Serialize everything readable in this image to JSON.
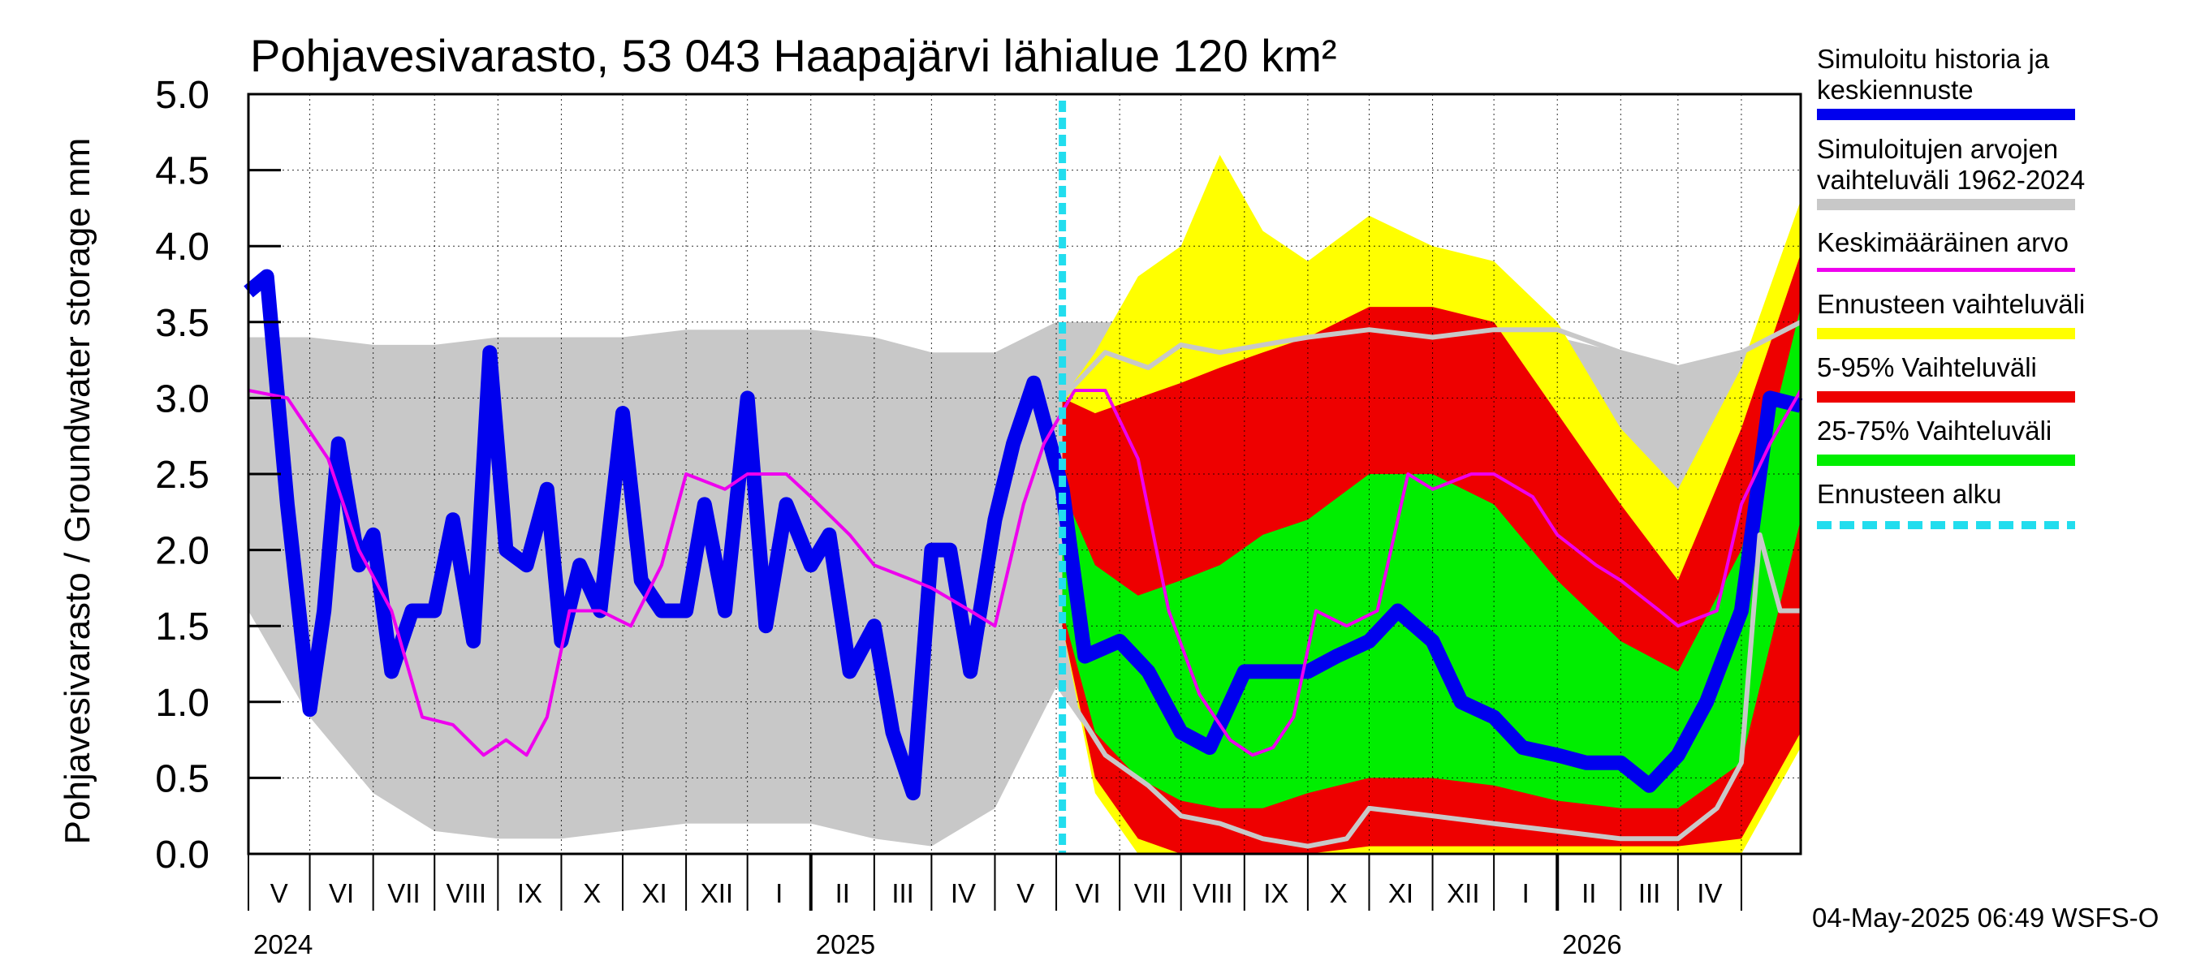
{
  "title": "Pohjavesivarasto, 53 043 Haapajärvi lähialue 120 km²",
  "timestamp": "04-May-2025 06:49 WSFS-O",
  "legend": [
    {
      "label": "Simuloitu historia ja\nkeskiennuste",
      "color": "#0000ee",
      "style": "thick"
    },
    {
      "label": "Simuloitujen arvojen\nvaihteluväli 1962-2024",
      "color": "#c8c8c8",
      "style": "thick"
    },
    {
      "label": "Keskimääräinen arvo",
      "color": "#ee00ee",
      "style": "thin"
    },
    {
      "label": "Ennusteen vaihteluväli",
      "color": "#ffff00",
      "style": "thick"
    },
    {
      "label": "5-95% Vaihteluväli",
      "color": "#ee0000",
      "style": "thick"
    },
    {
      "label": "25-75% Vaihteluväli",
      "color": "#00ee00",
      "style": "thick"
    },
    {
      "label": "Ennusteen alku",
      "color": "#22ddee",
      "style": "dashed"
    }
  ],
  "chart_data": {
    "type": "area",
    "title": "Pohjavesivarasto, 53 043 Haapajärvi lähialue 120 km²",
    "ylabel": "Pohjavesivarasto / Groundwater storage   mm",
    "xlabel": "",
    "ylim": [
      0,
      5
    ],
    "xlim": [
      "2024-04-01",
      "2026-04-30"
    ],
    "yticks": [
      "0.0",
      "0.5",
      "1.0",
      "1.5",
      "2.0",
      "2.5",
      "3.0",
      "3.5",
      "4.0",
      "4.5",
      "5.0"
    ],
    "month_labels": [
      "V",
      "VI",
      "VII",
      "VIII",
      "IX",
      "X",
      "XI",
      "XII",
      "I",
      "II",
      "III",
      "IV",
      "V",
      "VI",
      "VII",
      "VIII",
      "IX",
      "X",
      "XI",
      "XII",
      "I",
      "II",
      "III",
      "IV"
    ],
    "year_labels": [
      "2024",
      "2025",
      "2026"
    ],
    "grid": true,
    "forecast_start": "2025-05-04",
    "series": [
      {
        "name": "Simuloitujen arvojen vaihteluväli 1962-2024",
        "kind": "band",
        "x": [
          "2024-04-01",
          "2024-05-01",
          "2024-06-01",
          "2024-07-01",
          "2024-08-01",
          "2024-09-01",
          "2024-10-01",
          "2024-11-01",
          "2024-12-01",
          "2025-01-01",
          "2025-02-01",
          "2025-03-01",
          "2025-04-01",
          "2025-05-01",
          "2025-06-01",
          "2025-07-01",
          "2025-08-01",
          "2025-09-01",
          "2025-10-01",
          "2025-11-01",
          "2025-12-01",
          "2026-01-01",
          "2026-02-01",
          "2026-03-01",
          "2026-04-01",
          "2026-04-30"
        ],
        "low": [
          1.6,
          0.9,
          0.4,
          0.15,
          0.1,
          0.1,
          0.15,
          0.2,
          0.2,
          0.2,
          0.1,
          0.05,
          0.3,
          1.1,
          0.5,
          0.3,
          0.15,
          0.1,
          0.1,
          0.1,
          0.1,
          0.1,
          0.05,
          0.05,
          0.4,
          1.6
        ],
        "high": [
          3.4,
          3.4,
          3.35,
          3.35,
          3.4,
          3.4,
          3.4,
          3.45,
          3.45,
          3.45,
          3.4,
          3.3,
          3.3,
          3.5,
          3.5,
          3.45,
          3.4,
          3.45,
          3.45,
          3.5,
          3.5,
          3.4,
          3.3,
          3.2,
          3.3,
          3.5
        ]
      },
      {
        "name": "Ennusteen vaihteluväli",
        "kind": "band",
        "x": [
          "2025-05-04",
          "2025-05-20",
          "2025-06-10",
          "2025-07-01",
          "2025-07-20",
          "2025-08-10",
          "2025-09-01",
          "2025-10-01",
          "2025-11-01",
          "2025-12-01",
          "2026-01-01",
          "2026-02-01",
          "2026-03-01",
          "2026-04-01",
          "2026-04-30"
        ],
        "low": [
          1.5,
          0.4,
          0.0,
          0.0,
          0.0,
          0.0,
          0.0,
          0.0,
          0.0,
          0.0,
          0.0,
          0.0,
          0.0,
          0.0,
          0.7
        ],
        "high": [
          3.0,
          3.3,
          3.8,
          4.0,
          4.6,
          4.1,
          3.9,
          4.2,
          4.0,
          3.9,
          3.5,
          2.8,
          2.4,
          3.2,
          4.3
        ]
      },
      {
        "name": "5-95% Vaihteluväli",
        "kind": "band",
        "x": [
          "2025-05-04",
          "2025-05-20",
          "2025-06-10",
          "2025-07-01",
          "2025-07-20",
          "2025-08-10",
          "2025-09-01",
          "2025-10-01",
          "2025-11-01",
          "2025-12-01",
          "2026-01-01",
          "2026-02-01",
          "2026-03-01",
          "2026-04-01",
          "2026-04-30"
        ],
        "low": [
          1.5,
          0.5,
          0.1,
          0.0,
          0.0,
          0.0,
          0.0,
          0.05,
          0.05,
          0.05,
          0.05,
          0.05,
          0.05,
          0.1,
          0.8
        ],
        "high": [
          3.0,
          2.9,
          3.0,
          3.1,
          3.2,
          3.3,
          3.4,
          3.6,
          3.6,
          3.5,
          2.9,
          2.3,
          1.8,
          2.8,
          3.95
        ]
      },
      {
        "name": "25-75% Vaihteluväli",
        "kind": "band",
        "x": [
          "2025-05-04",
          "2025-05-20",
          "2025-06-10",
          "2025-07-01",
          "2025-07-20",
          "2025-08-10",
          "2025-09-01",
          "2025-10-01",
          "2025-11-01",
          "2025-12-01",
          "2026-01-01",
          "2026-02-01",
          "2026-03-01",
          "2026-04-01",
          "2026-04-30"
        ],
        "low": [
          1.6,
          0.8,
          0.5,
          0.35,
          0.3,
          0.3,
          0.4,
          0.5,
          0.5,
          0.45,
          0.35,
          0.3,
          0.3,
          0.6,
          2.2
        ],
        "high": [
          2.4,
          1.9,
          1.7,
          1.8,
          1.9,
          2.1,
          2.2,
          2.5,
          2.5,
          2.3,
          1.8,
          1.4,
          1.2,
          2.0,
          3.6
        ]
      },
      {
        "name": "Simuloitu historia ja keskiennuste",
        "kind": "line",
        "stroke": 18,
        "x": [
          "2024-04-01",
          "2024-04-10",
          "2024-04-20",
          "2024-05-01",
          "2024-05-08",
          "2024-05-15",
          "2024-05-25",
          "2024-06-01",
          "2024-06-10",
          "2024-06-20",
          "2024-07-01",
          "2024-07-10",
          "2024-07-20",
          "2024-07-28",
          "2024-08-05",
          "2024-08-15",
          "2024-08-25",
          "2024-09-01",
          "2024-09-10",
          "2024-09-20",
          "2024-10-01",
          "2024-10-10",
          "2024-10-20",
          "2024-11-01",
          "2024-11-10",
          "2024-11-20",
          "2024-12-01",
          "2024-12-10",
          "2024-12-20",
          "2025-01-01",
          "2025-01-10",
          "2025-01-20",
          "2025-02-01",
          "2025-02-10",
          "2025-02-20",
          "2025-03-01",
          "2025-03-10",
          "2025-03-20",
          "2025-04-01",
          "2025-04-10",
          "2025-04-20",
          "2025-05-04",
          "2025-05-15",
          "2025-06-01",
          "2025-06-15",
          "2025-07-01",
          "2025-07-15",
          "2025-08-01",
          "2025-08-15",
          "2025-09-01",
          "2025-09-15",
          "2025-10-01",
          "2025-10-15",
          "2025-11-01",
          "2025-11-15",
          "2025-12-01",
          "2025-12-15",
          "2026-01-01",
          "2026-01-15",
          "2026-02-01",
          "2026-02-15",
          "2026-03-01",
          "2026-03-15",
          "2026-04-01",
          "2026-04-15",
          "2026-04-30"
        ],
        "y": [
          3.7,
          3.8,
          2.3,
          0.95,
          1.6,
          2.7,
          1.9,
          2.1,
          1.2,
          1.6,
          1.6,
          2.2,
          1.4,
          3.3,
          2.0,
          1.9,
          2.4,
          1.4,
          1.9,
          1.6,
          2.9,
          1.8,
          1.6,
          1.6,
          2.3,
          1.6,
          3.0,
          1.5,
          2.3,
          1.9,
          2.1,
          1.2,
          1.5,
          0.8,
          0.4,
          2.0,
          2.0,
          1.2,
          2.2,
          2.7,
          3.1,
          2.4,
          1.3,
          1.4,
          1.2,
          0.8,
          0.7,
          1.2,
          1.2,
          1.2,
          1.3,
          1.4,
          1.6,
          1.4,
          1.0,
          0.9,
          0.7,
          0.65,
          0.6,
          0.6,
          0.45,
          0.65,
          1.0,
          1.6,
          3.0,
          2.95
        ]
      },
      {
        "name": "Keskimääräinen arvo",
        "kind": "line",
        "stroke": 4,
        "x": [
          "2024-04-01",
          "2024-04-20",
          "2024-05-10",
          "2024-05-25",
          "2024-06-10",
          "2024-06-25",
          "2024-07-10",
          "2024-07-25",
          "2024-08-05",
          "2024-08-15",
          "2024-08-25",
          "2024-09-05",
          "2024-09-20",
          "2024-10-05",
          "2024-10-20",
          "2024-11-01",
          "2024-11-20",
          "2024-12-01",
          "2024-12-20",
          "2025-01-01",
          "2025-01-20",
          "2025-02-01",
          "2025-02-20",
          "2025-03-01",
          "2025-03-20",
          "2025-04-01",
          "2025-04-15",
          "2025-04-25",
          "2025-05-10",
          "2025-05-25",
          "2025-06-10",
          "2025-06-25",
          "2025-07-10",
          "2025-07-25",
          "2025-08-05",
          "2025-08-15",
          "2025-08-25",
          "2025-09-05",
          "2025-09-20",
          "2025-10-05",
          "2025-10-20",
          "2025-11-01",
          "2025-11-20",
          "2025-12-01",
          "2025-12-20",
          "2026-01-01",
          "2026-01-20",
          "2026-02-01",
          "2026-02-20",
          "2026-03-01",
          "2026-03-20",
          "2026-04-01",
          "2026-04-15",
          "2026-04-30"
        ],
        "y": [
          3.05,
          3.0,
          2.6,
          2.0,
          1.6,
          0.9,
          0.85,
          0.65,
          0.75,
          0.65,
          0.9,
          1.6,
          1.6,
          1.5,
          1.9,
          2.5,
          2.4,
          2.5,
          2.5,
          2.35,
          2.1,
          1.9,
          1.8,
          1.75,
          1.6,
          1.5,
          2.3,
          2.7,
          3.05,
          3.05,
          2.6,
          1.6,
          1.05,
          0.75,
          0.65,
          0.7,
          0.9,
          1.6,
          1.5,
          1.6,
          2.5,
          2.4,
          2.5,
          2.5,
          2.35,
          2.1,
          1.9,
          1.8,
          1.6,
          1.5,
          1.6,
          2.3,
          2.7,
          3.05
        ]
      },
      {
        "name": "Simuloitujen arvojen vaihteluväli 1962-2024 (min)",
        "kind": "line",
        "stroke": 6,
        "x": [
          "2025-05-04",
          "2025-05-25",
          "2025-06-15",
          "2025-07-01",
          "2025-07-20",
          "2025-08-10",
          "2025-09-01",
          "2025-09-20",
          "2025-10-01",
          "2025-11-01",
          "2025-12-01",
          "2026-01-01",
          "2026-02-01",
          "2026-03-01",
          "2026-03-20",
          "2026-04-01",
          "2026-04-10",
          "2026-04-20",
          "2026-04-30"
        ],
        "y": [
          1.1,
          0.65,
          0.45,
          0.25,
          0.2,
          0.1,
          0.05,
          0.1,
          0.3,
          0.25,
          0.2,
          0.15,
          0.1,
          0.1,
          0.3,
          0.6,
          2.1,
          1.6,
          1.6
        ]
      },
      {
        "name": "Simuloitujen arvojen vaihteluväli 1962-2024 (max)",
        "kind": "line",
        "stroke": 6,
        "x": [
          "2025-05-04",
          "2025-05-25",
          "2025-06-15",
          "2025-07-01",
          "2025-07-20",
          "2025-08-10",
          "2025-09-01",
          "2025-10-01",
          "2025-11-01",
          "2025-12-01",
          "2026-01-01",
          "2026-02-01",
          "2026-03-01",
          "2026-04-01",
          "2026-04-30"
        ],
        "y": [
          3.0,
          3.3,
          3.2,
          3.35,
          3.3,
          3.35,
          3.4,
          3.45,
          3.4,
          3.45,
          3.45,
          3.3,
          3.2,
          3.3,
          3.5
        ]
      }
    ]
  }
}
